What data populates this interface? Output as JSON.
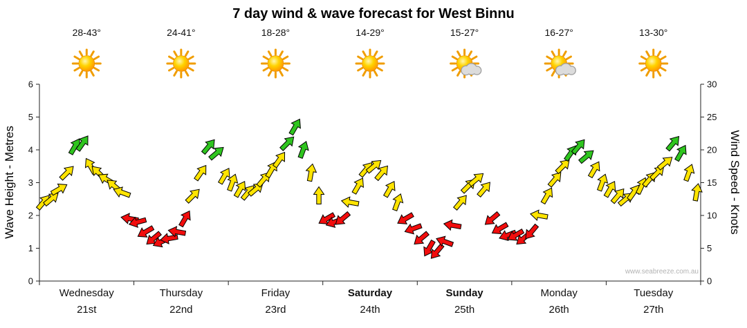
{
  "watermark": "www.seabreeze.com.au",
  "chart_data": {
    "type": "scatter",
    "subtype": "wind-arrow-forecast",
    "title": "7 day wind & wave forecast for West Binnu",
    "y_left": {
      "label": "Wave Height - Metres",
      "min": 0,
      "max": 6,
      "ticks": [
        0,
        1,
        2,
        3,
        4,
        5,
        6
      ]
    },
    "y_right": {
      "label": "Wind Speed - Knots",
      "min": 0,
      "max": 30,
      "ticks": [
        0,
        5,
        10,
        15,
        20,
        25,
        30
      ]
    },
    "legend": "arrow colour = wind strength, arrow height = wind speed in knots (right axis), metres = knots / 5",
    "days": [
      {
        "name": "Wednesday",
        "date": "21st",
        "temp": "28-43°",
        "icon": "sun",
        "weekend": false
      },
      {
        "name": "Thursday",
        "date": "22nd",
        "temp": "24-41°",
        "icon": "sun",
        "weekend": false
      },
      {
        "name": "Friday",
        "date": "23rd",
        "temp": "18-28°",
        "icon": "sun",
        "weekend": false
      },
      {
        "name": "Saturday",
        "date": "24th",
        "temp": "14-29°",
        "icon": "sun",
        "weekend": true
      },
      {
        "name": "Sunday",
        "date": "25th",
        "temp": "15-27°",
        "icon": "sun-cloud",
        "weekend": true
      },
      {
        "name": "Monday",
        "date": "26th",
        "temp": "16-27°",
        "icon": "sun-cloud",
        "weekend": false
      },
      {
        "name": "Tuesday",
        "date": "27th",
        "temp": "13-30°",
        "icon": "sun",
        "weekend": false
      }
    ],
    "wind_colors": {
      "light": "#f20d0d",
      "moderate": "#ffe400",
      "fresh": "#2fc51f",
      "outline": "#000000",
      "light_below_kts": 10,
      "fresh_from_kts": 19
    },
    "arrows_per_day": 12,
    "series": [
      {
        "day": "Wednesday",
        "kts": [
          12,
          12.5,
          14,
          16.5,
          20.5,
          21,
          17.5,
          16.5,
          15.5,
          14.5,
          13.5,
          9.5
        ],
        "rot": [
          -50,
          -40,
          -30,
          -45,
          -60,
          -55,
          -120,
          -135,
          -150,
          -140,
          -160,
          -170
        ]
      },
      {
        "day": "Thursday",
        "kts": [
          9,
          7.5,
          6.5,
          6,
          6.5,
          7.5,
          9.5,
          13,
          16.5,
          20.5,
          19.5,
          16
        ],
        "rot": [
          165,
          150,
          140,
          155,
          170,
          -170,
          -60,
          -45,
          -55,
          -50,
          -40,
          -60
        ]
      },
      {
        "day": "Friday",
        "kts": [
          15,
          14,
          13.5,
          14,
          15.5,
          17,
          18.5,
          21,
          23.5,
          20,
          16.5,
          13
        ],
        "rot": [
          -70,
          -60,
          -50,
          -40,
          -50,
          -60,
          -55,
          -45,
          -60,
          -70,
          -80,
          -90
        ]
      },
      {
        "day": "Saturday",
        "kts": [
          9.5,
          9,
          9.5,
          12,
          14.5,
          17,
          17.5,
          16.5,
          14,
          12,
          9.5,
          8
        ],
        "rot": [
          150,
          160,
          140,
          -170,
          -60,
          -50,
          -40,
          -50,
          -60,
          -70,
          150,
          160
        ]
      },
      {
        "day": "Sunday",
        "kts": [
          6.5,
          5,
          4.5,
          6,
          8.5,
          12,
          14.5,
          15.5,
          14,
          9.5,
          8,
          7
        ],
        "rot": [
          140,
          120,
          130,
          -160,
          -170,
          -50,
          -45,
          -40,
          -50,
          140,
          150,
          160
        ]
      },
      {
        "day": "Monday",
        "kts": [
          7,
          6.5,
          7.5,
          10,
          13,
          15.5,
          17.5,
          19.5,
          20.5,
          19,
          17,
          15
        ],
        "rot": [
          150,
          140,
          130,
          -170,
          -60,
          -50,
          -45,
          -55,
          -50,
          -40,
          -60,
          -70
        ]
      },
      {
        "day": "Tuesday",
        "kts": [
          14,
          13,
          12.5,
          13.5,
          14.5,
          15.5,
          16.5,
          18,
          21,
          19.5,
          16.5,
          13.5
        ],
        "rot": [
          -60,
          -50,
          -40,
          -55,
          -65,
          -50,
          -45,
          -40,
          -50,
          -60,
          -70,
          -80
        ]
      }
    ]
  }
}
